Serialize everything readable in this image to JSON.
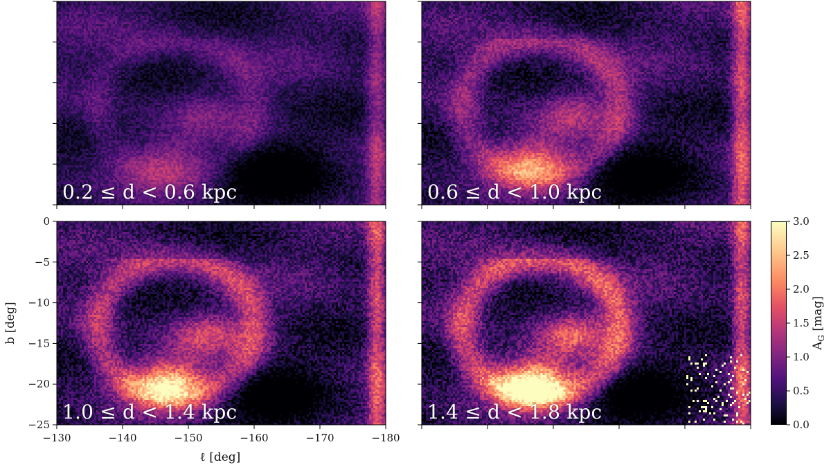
{
  "chart_data": {
    "type": "heatmap",
    "figure": "four-panel extinction maps in Galactic coordinates",
    "xlabel": "ℓ [deg]",
    "ylabel": "b [deg]",
    "xlim": [
      -130,
      -180
    ],
    "ylim": [
      -25,
      0
    ],
    "xticks": [
      "−130",
      "−140",
      "−150",
      "−160",
      "−170",
      "−180"
    ],
    "yticks": [
      "0",
      "−5",
      "−10",
      "−15",
      "−20",
      "−25"
    ],
    "colormap": "magma",
    "colorbar": {
      "label_main": "A",
      "label_sub": "G",
      "label_unit": " [mag]",
      "range": [
        0.0,
        3.0
      ],
      "ticks": [
        "0.0",
        "0.5",
        "1.0",
        "1.5",
        "2.0",
        "2.5",
        "3.0"
      ]
    },
    "panels": [
      {
        "label": "0.2 ≤ d < 0.6 kpc",
        "level": 0.35
      },
      {
        "label": "0.6 ≤ d < 1.0 kpc",
        "level": 0.75
      },
      {
        "label": "1.0 ≤ d < 1.4 kpc",
        "level": 1.0
      },
      {
        "label": "1.4 ≤ d < 1.8 kpc",
        "level": 1.2
      }
    ],
    "grid": false
  }
}
